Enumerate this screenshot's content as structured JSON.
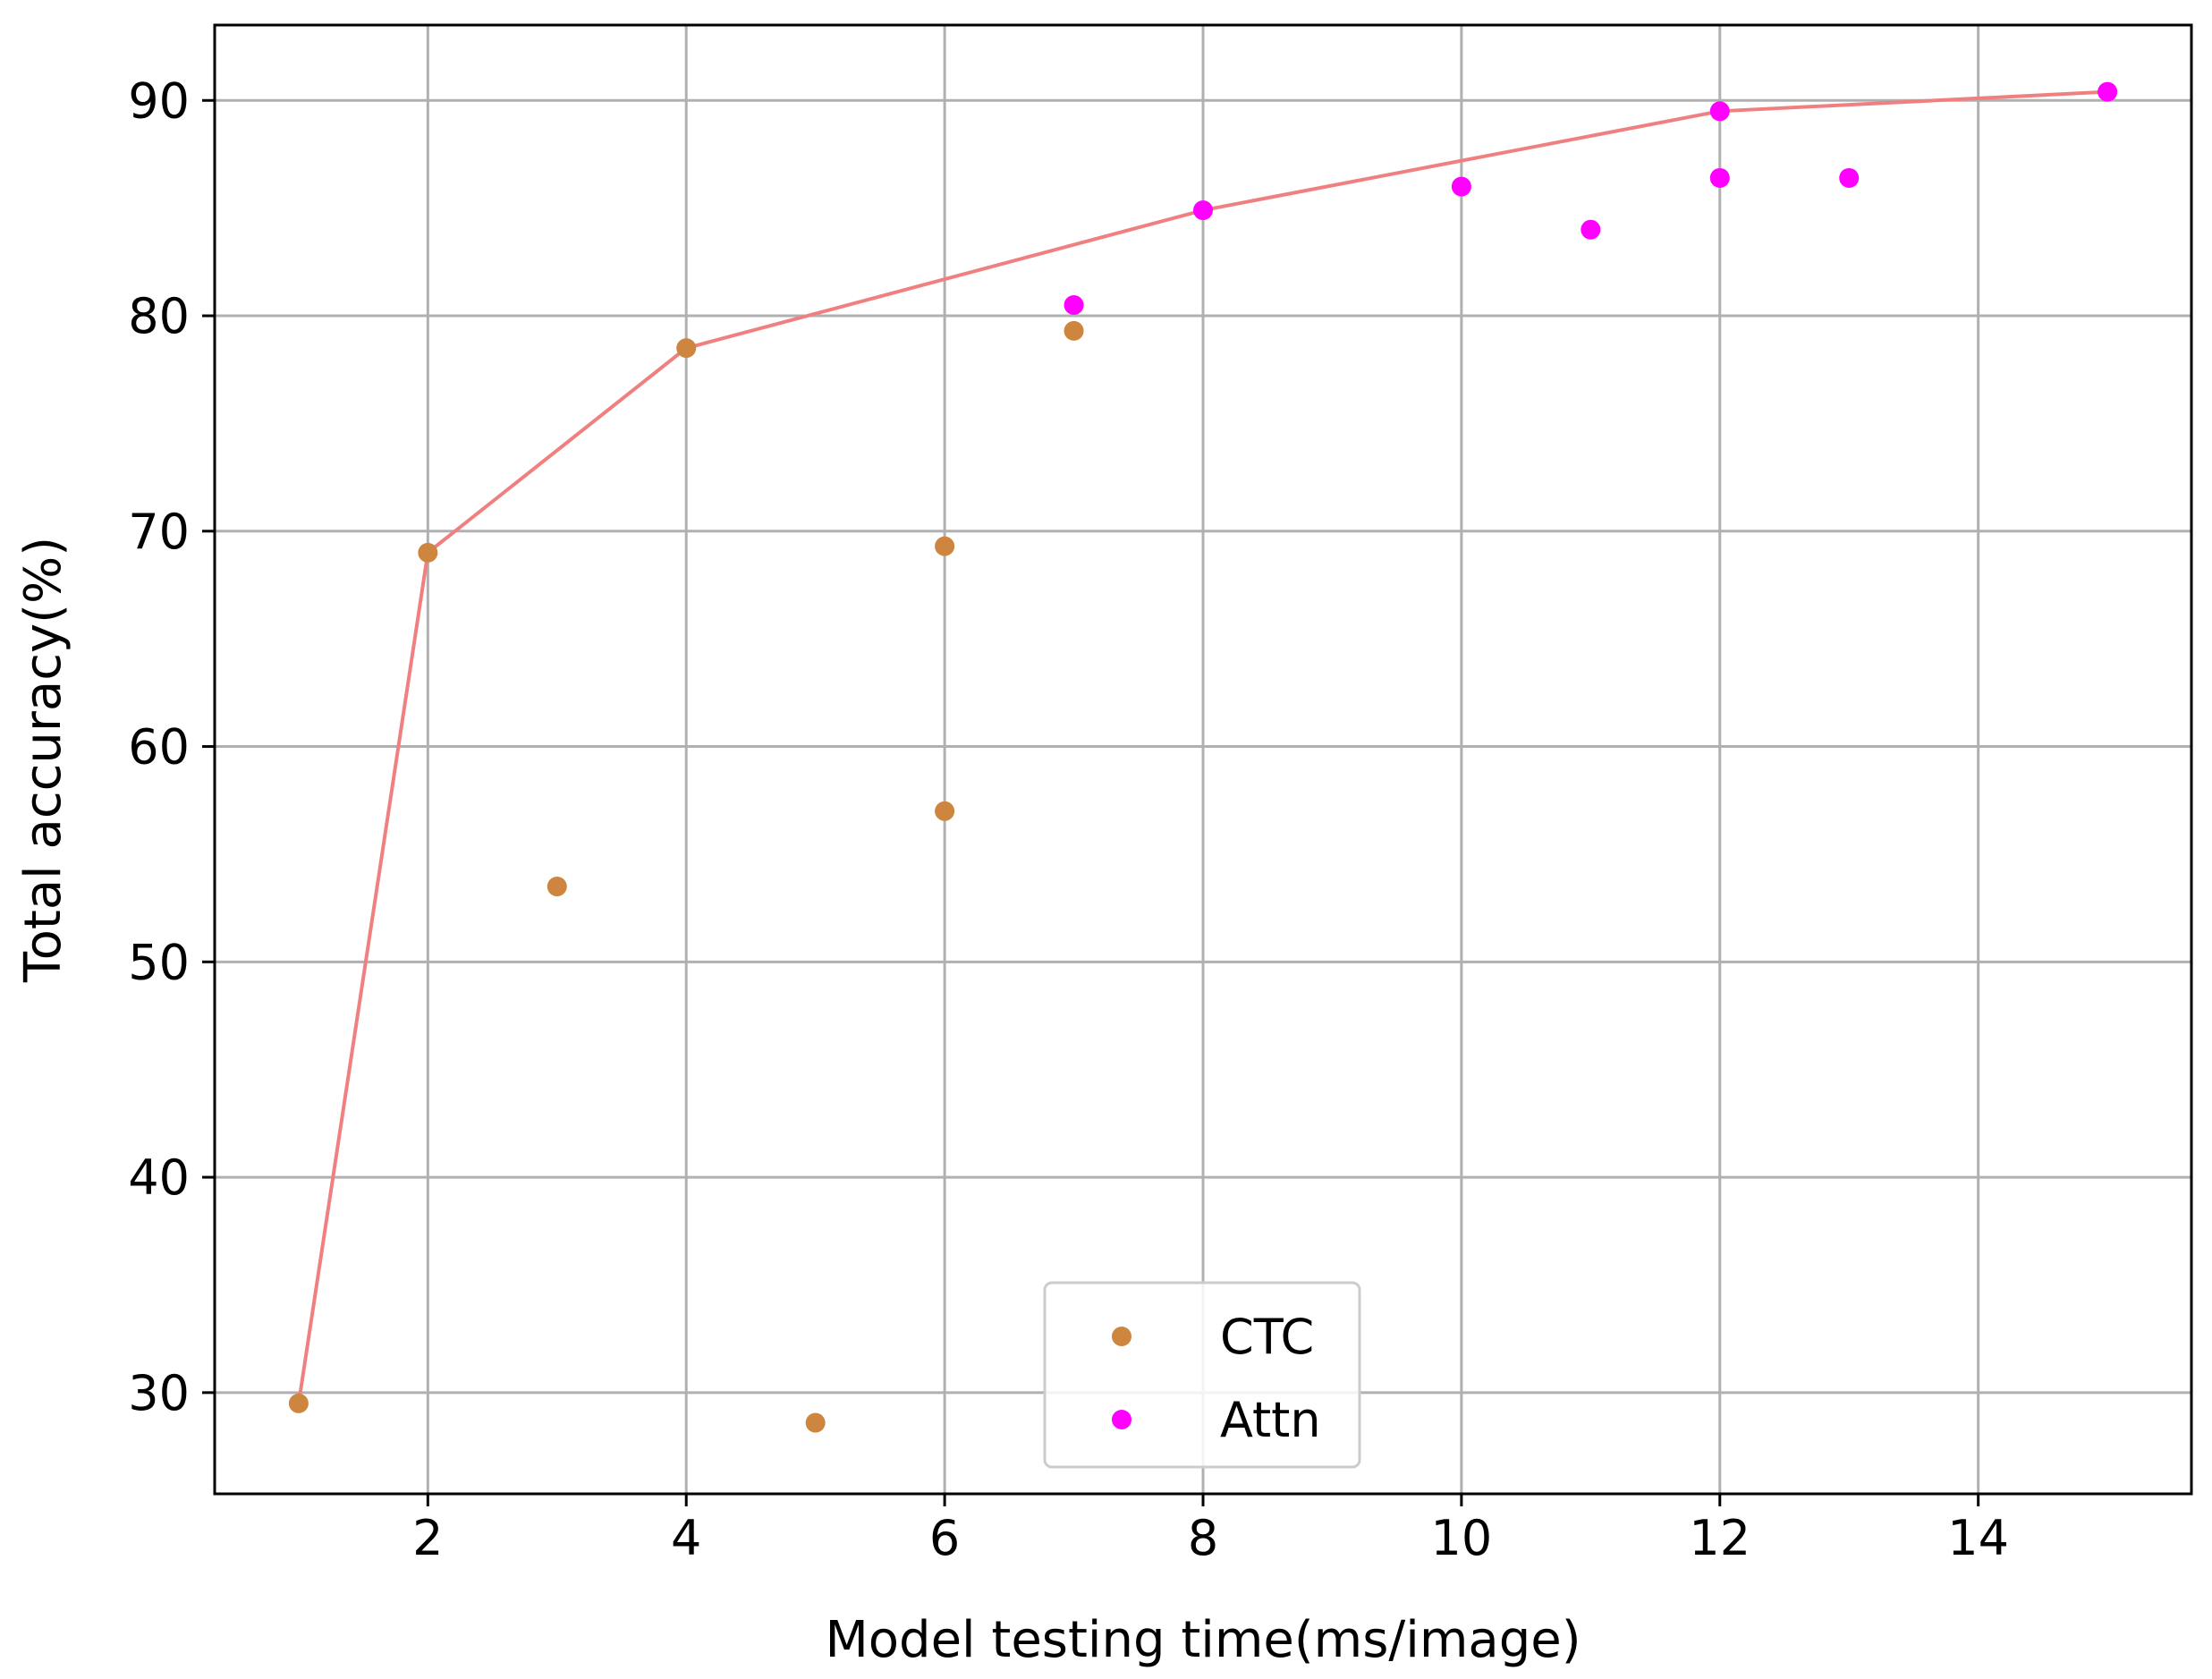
{
  "chart_data": {
    "type": "scatter",
    "xlabel": "Model testing time(ms/image)",
    "ylabel": "Total accuracy(%)",
    "xlim": [
      0.35,
      15.65
    ],
    "ylim": [
      25.3,
      93.5
    ],
    "xticks": [
      2,
      4,
      6,
      8,
      10,
      12,
      14
    ],
    "yticks": [
      30,
      40,
      50,
      60,
      70,
      80,
      90
    ],
    "grid": true,
    "legend_position": "lower-center",
    "series": [
      {
        "name": "CTC",
        "kind": "scatter",
        "color": "#cd853f",
        "points": [
          {
            "x": 1,
            "y": 29.5
          },
          {
            "x": 2,
            "y": 69.0
          },
          {
            "x": 3,
            "y": 53.5
          },
          {
            "x": 4,
            "y": 78.5
          },
          {
            "x": 5,
            "y": 28.6
          },
          {
            "x": 6,
            "y": 69.3
          },
          {
            "x": 6,
            "y": 57.0
          },
          {
            "x": 7,
            "y": 79.3
          }
        ]
      },
      {
        "name": "Attn",
        "kind": "scatter",
        "color": "#ff00ff",
        "points": [
          {
            "x": 7,
            "y": 80.5
          },
          {
            "x": 8,
            "y": 84.9
          },
          {
            "x": 10,
            "y": 86.0
          },
          {
            "x": 11,
            "y": 84.0
          },
          {
            "x": 12,
            "y": 89.5
          },
          {
            "x": 12,
            "y": 86.4
          },
          {
            "x": 13,
            "y": 86.4
          },
          {
            "x": 15,
            "y": 90.4
          }
        ]
      }
    ],
    "frontier": {
      "kind": "line",
      "color": "#f08080",
      "points": [
        {
          "x": 1,
          "y": 29.5
        },
        {
          "x": 2,
          "y": 69.0
        },
        {
          "x": 4,
          "y": 78.5
        },
        {
          "x": 8,
          "y": 84.9
        },
        {
          "x": 12,
          "y": 89.5
        },
        {
          "x": 15,
          "y": 90.4
        }
      ]
    }
  }
}
